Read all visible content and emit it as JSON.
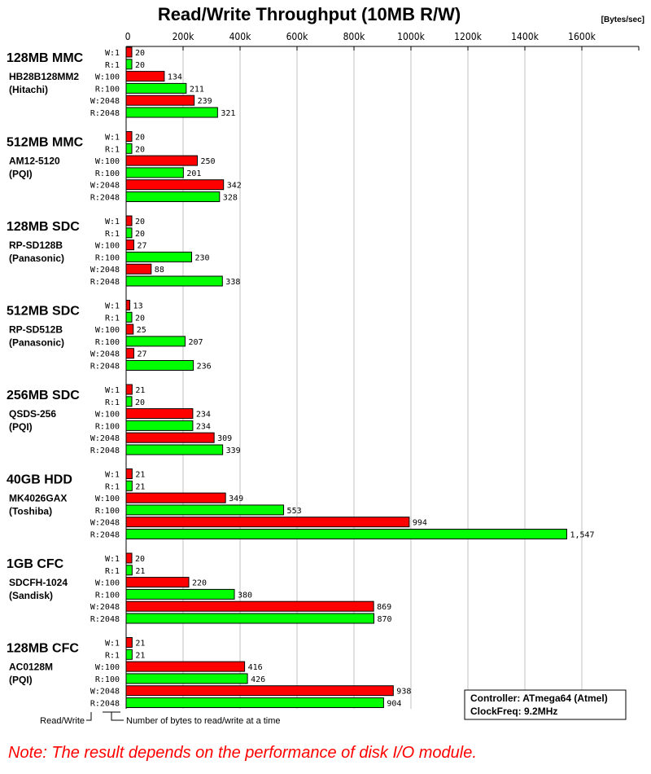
{
  "chart_data": {
    "type": "bar",
    "orientation": "horizontal",
    "title": "Read/Write Throughput (10MB R/W)",
    "unit_label": "[Bytes/sec]",
    "xlim": [
      0,
      1800
    ],
    "x_ticks": [
      "0",
      "200k",
      "400k",
      "600k",
      "800k",
      "1000k",
      "1200k",
      "1400k",
      "1600k"
    ],
    "x_tick_values": [
      0,
      200,
      400,
      600,
      800,
      1000,
      1200,
      1400,
      1600
    ],
    "grid": true,
    "row_labels": [
      "W:1",
      "R:1",
      "W:100",
      "R:100",
      "W:2048",
      "R:2048"
    ],
    "colors": {
      "write": "#ff0000",
      "read": "#00ff00",
      "grid": "#c0c0c0"
    },
    "groups": [
      {
        "name": "128MB MMC",
        "model": "HB28B128MM2",
        "maker": "(Hitachi)",
        "values": [
          20,
          20,
          134,
          211,
          239,
          321
        ],
        "labels": [
          "20",
          "20",
          "134",
          "211",
          "239",
          "321"
        ]
      },
      {
        "name": "512MB MMC",
        "model": "AM12-5120",
        "maker": "(PQI)",
        "values": [
          20,
          20,
          250,
          201,
          342,
          328
        ],
        "labels": [
          "20",
          "20",
          "250",
          "201",
          "342",
          "328"
        ]
      },
      {
        "name": "128MB SDC",
        "model": "RP-SD128B",
        "maker": "(Panasonic)",
        "values": [
          20,
          20,
          27,
          230,
          88,
          338
        ],
        "labels": [
          "20",
          "20",
          "27",
          "230",
          "88",
          "338"
        ]
      },
      {
        "name": "512MB SDC",
        "model": "RP-SD512B",
        "maker": "(Panasonic)",
        "values": [
          13,
          20,
          25,
          207,
          27,
          236
        ],
        "labels": [
          "13",
          "20",
          "25",
          "207",
          "27",
          "236"
        ]
      },
      {
        "name": "256MB SDC",
        "model": "QSDS-256",
        "maker": "(PQI)",
        "values": [
          21,
          20,
          234,
          234,
          309,
          339
        ],
        "labels": [
          "21",
          "20",
          "234",
          "234",
          "309",
          "339"
        ]
      },
      {
        "name": "40GB HDD",
        "model": "MK4026GAX",
        "maker": "(Toshiba)",
        "values": [
          21,
          21,
          349,
          553,
          994,
          1547
        ],
        "labels": [
          "21",
          "21",
          "349",
          "553",
          "994",
          "1,547"
        ]
      },
      {
        "name": "1GB CFC",
        "model": "SDCFH-1024",
        "maker": "(Sandisk)",
        "values": [
          20,
          21,
          220,
          380,
          869,
          870
        ],
        "labels": [
          "20",
          "21",
          "220",
          "380",
          "869",
          "870"
        ]
      },
      {
        "name": "128MB CFC",
        "model": "AC0128M",
        "maker": "(PQI)",
        "values": [
          21,
          21,
          416,
          426,
          938,
          904
        ],
        "labels": [
          "21",
          "21",
          "416",
          "426",
          "938",
          "904"
        ]
      }
    ]
  },
  "legend_notes": {
    "rw": "Read/Write",
    "bytes": "Number of bytes to read/write at a time"
  },
  "info_box": {
    "line1": "Controller: ATmega64 (Atmel)",
    "line2": "ClockFreq: 9.2MHz"
  },
  "note": "Note: The result depends on the performance of disk I/O module."
}
